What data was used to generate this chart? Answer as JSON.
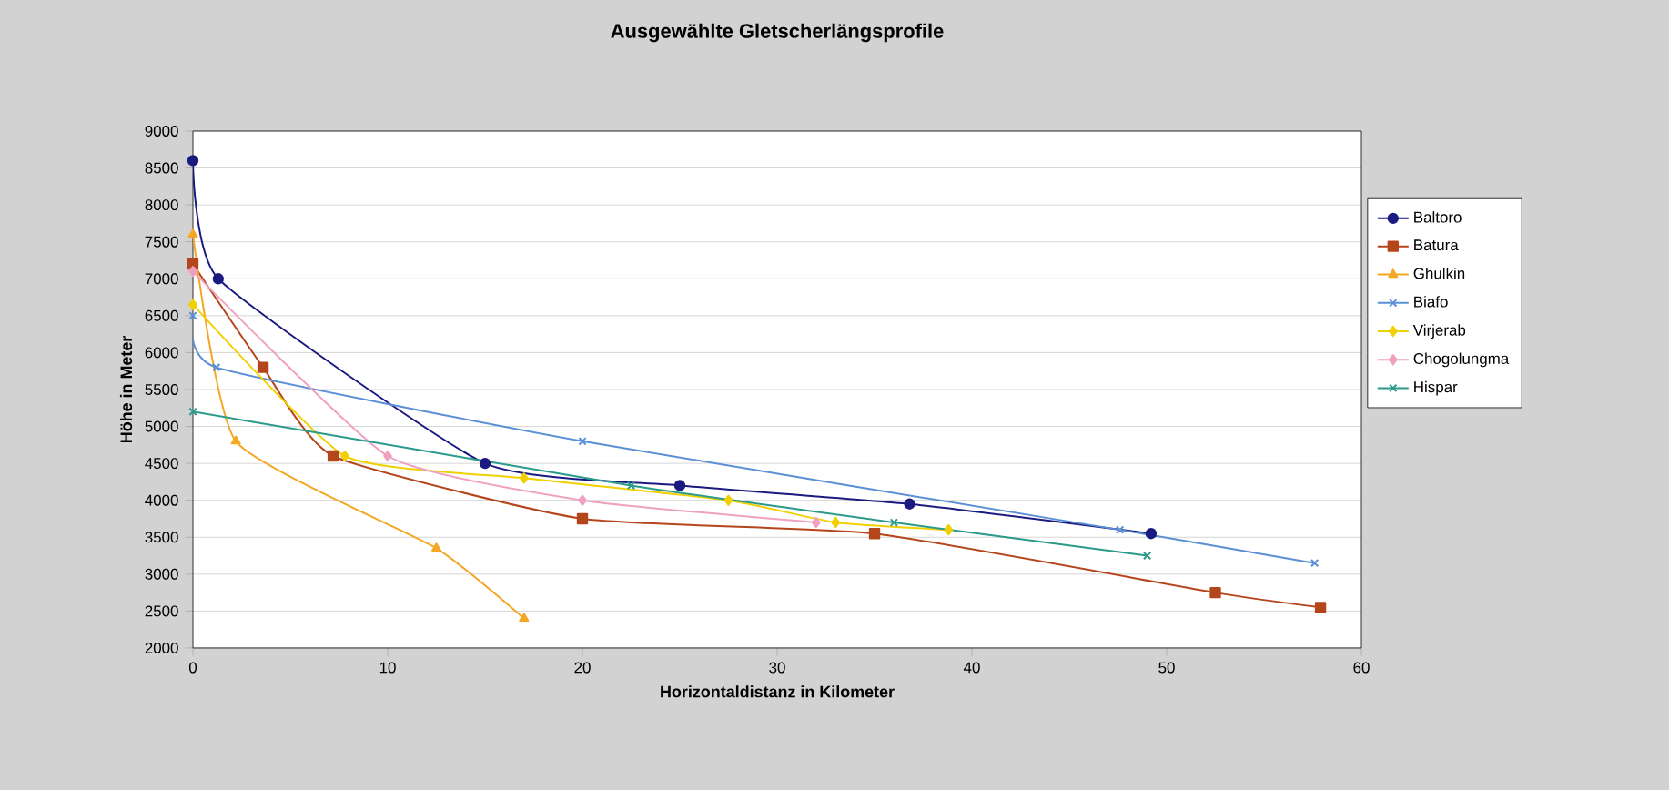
{
  "chart_data": {
    "type": "line",
    "title": "Ausgewählte Gletscherlängsprofile",
    "xlabel": "Horizontaldistanz in Kilometer",
    "ylabel": "Höhe in Meter",
    "xlim": [
      0,
      60
    ],
    "xticks": [
      0,
      10,
      20,
      30,
      40,
      50,
      60
    ],
    "ylim": [
      2000,
      9000
    ],
    "yticks": [
      2000,
      2500,
      3000,
      3500,
      4000,
      4500,
      5000,
      5500,
      6000,
      6500,
      7000,
      7500,
      8000,
      8500,
      9000
    ],
    "grid": "y",
    "legend": "right",
    "series": [
      {
        "name": "Baltoro",
        "color": "#1a1a80",
        "marker": "circle",
        "x": [
          0,
          1.3,
          15,
          25,
          36.8,
          49.2
        ],
        "values": [
          8600,
          7000,
          4500,
          4200,
          3950,
          3550
        ]
      },
      {
        "name": "Batura",
        "color": "#b5451b",
        "marker": "square",
        "x": [
          0,
          3.6,
          7.2,
          20,
          35,
          52.5,
          57.9
        ],
        "values": [
          7200,
          5800,
          4600,
          3750,
          3550,
          2750,
          2550
        ]
      },
      {
        "name": "Ghulkin",
        "color": "#f5a623",
        "marker": "triangle",
        "x": [
          0,
          2.2,
          12.5,
          17
        ],
        "values": [
          7600,
          4800,
          3350,
          2400
        ]
      },
      {
        "name": "Biafo",
        "color": "#5b8fd6",
        "marker": "cross",
        "x": [
          0,
          1.2,
          20,
          47.6,
          57.6
        ],
        "values": [
          6500,
          5800,
          4800,
          3600,
          3150
        ]
      },
      {
        "name": "Virjerab",
        "color": "#f0d000",
        "marker": "diamond",
        "x": [
          0,
          7.8,
          17,
          27.5,
          33,
          38.8
        ],
        "values": [
          6650,
          4600,
          4300,
          4000,
          3700,
          3600
        ]
      },
      {
        "name": "Chogolungma",
        "color": "#f0a0c0",
        "marker": "diamond",
        "x": [
          0,
          10,
          20,
          32
        ],
        "values": [
          7100,
          4600,
          4000,
          3700
        ]
      },
      {
        "name": "Hispar",
        "color": "#2a9a8a",
        "marker": "cross",
        "x": [
          0,
          22.5,
          36,
          49
        ],
        "values": [
          5200,
          4200,
          3700,
          3250
        ]
      }
    ]
  }
}
